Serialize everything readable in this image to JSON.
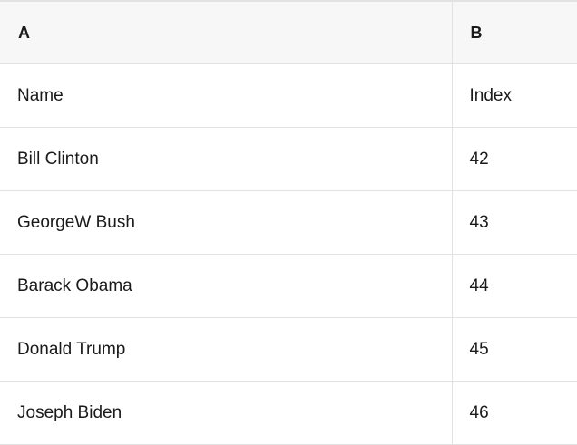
{
  "table": {
    "column_headers": [
      {
        "label": "A"
      },
      {
        "label": "B"
      }
    ],
    "rows": [
      {
        "name": "Name",
        "index": "Index"
      },
      {
        "name": "Bill Clinton",
        "index": "42"
      },
      {
        "name": "GeorgeW Bush",
        "index": "43"
      },
      {
        "name": "Barack Obama",
        "index": "44"
      },
      {
        "name": "Donald Trump",
        "index": "45"
      },
      {
        "name": "Joseph Biden",
        "index": "46"
      }
    ],
    "colors": {
      "header_bg": "#f7f7f7",
      "border": "#e2e2e2",
      "text": "#1a1a1a",
      "background": "#ffffff"
    }
  }
}
